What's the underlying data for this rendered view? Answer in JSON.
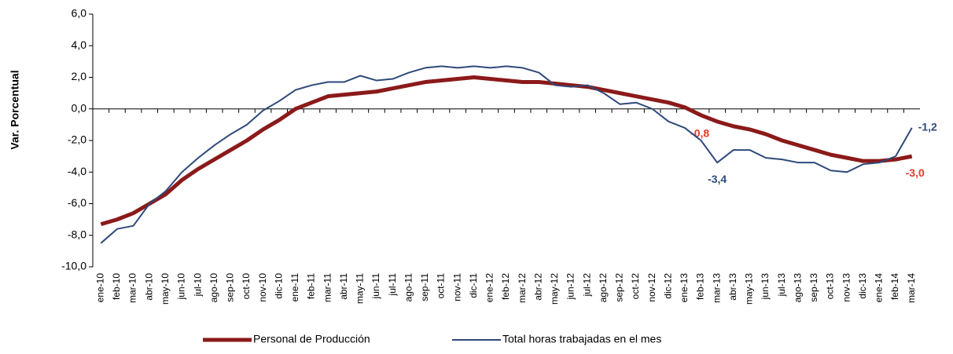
{
  "chart_data": {
    "type": "line",
    "y_label": "Var. Porcentual",
    "categories": [
      "ene-10",
      "feb-10",
      "mar-10",
      "abr-10",
      "may-10",
      "jun-10",
      "jul-10",
      "ago-10",
      "sep-10",
      "oct-10",
      "nov-10",
      "dic-10",
      "ene-11",
      "feb-11",
      "mar-11",
      "abr-11",
      "may-11",
      "jun-11",
      "jul-11",
      "ago-11",
      "sep-11",
      "oct-11",
      "nov-11",
      "dic-11",
      "ene-12",
      "feb-12",
      "mar-12",
      "abr-12",
      "may-12",
      "jun-12",
      "jul-12",
      "ago-12",
      "sep-12",
      "oct-12",
      "nov-12",
      "dic-12",
      "ene-13",
      "feb-13",
      "mar-13",
      "abr-13",
      "may-13",
      "jun-13",
      "jul-13",
      "ago-13",
      "sep-13",
      "oct-13",
      "nov-13",
      "dic-13",
      "ene-14",
      "feb-14",
      "mar-14"
    ],
    "series": [
      {
        "name": "Personal de Producción",
        "color": "#8b1a1a",
        "label_color": "#e03c28",
        "width": 5,
        "values": [
          -7.3,
          -7.0,
          -6.6,
          -6.0,
          -5.4,
          -4.5,
          -3.8,
          -3.2,
          -2.6,
          -2.0,
          -1.3,
          -0.7,
          0.0,
          0.4,
          0.8,
          0.9,
          1.0,
          1.1,
          1.3,
          1.5,
          1.7,
          1.8,
          1.9,
          2.0,
          1.9,
          1.8,
          1.7,
          1.7,
          1.6,
          1.5,
          1.4,
          1.2,
          1.0,
          0.8,
          0.6,
          0.4,
          0.1,
          -0.4,
          -0.8,
          -1.1,
          -1.3,
          -1.6,
          -2.0,
          -2.3,
          -2.6,
          -2.9,
          -3.1,
          -3.3,
          -3.3,
          -3.2,
          -3.0
        ],
        "value_labels": [
          null,
          null,
          null,
          null,
          null,
          null,
          null,
          null,
          null,
          null,
          null,
          null,
          null,
          null,
          null,
          null,
          null,
          null,
          null,
          null,
          null,
          null,
          null,
          null,
          null,
          null,
          null,
          null,
          null,
          null,
          null,
          null,
          null,
          null,
          null,
          null,
          null,
          null,
          "-0,8",
          null,
          null,
          null,
          null,
          null,
          null,
          null,
          null,
          null,
          null,
          null,
          "-3,0"
        ]
      },
      {
        "name": "Total horas trabajadas en el mes",
        "color": "#2e4a7a",
        "label_color": "#2e4a7a",
        "width": 2,
        "values": [
          -8.5,
          -7.6,
          -7.4,
          -6.0,
          -5.2,
          -4.0,
          -3.1,
          -2.3,
          -1.6,
          -1.0,
          -0.1,
          0.5,
          1.2,
          1.5,
          1.7,
          1.7,
          2.1,
          1.8,
          1.9,
          2.3,
          2.6,
          2.7,
          2.6,
          2.7,
          2.6,
          2.7,
          2.6,
          2.3,
          1.5,
          1.4,
          1.5,
          1.0,
          0.3,
          0.4,
          0.0,
          -0.8,
          -1.2,
          -2.0,
          -3.4,
          -2.6,
          -2.6,
          -3.1,
          -3.2,
          -3.4,
          -3.4,
          -3.9,
          -4.0,
          -3.5,
          -3.4,
          -3.0,
          -1.2
        ],
        "value_labels": [
          null,
          null,
          null,
          null,
          null,
          null,
          null,
          null,
          null,
          null,
          null,
          null,
          null,
          null,
          null,
          null,
          null,
          null,
          null,
          null,
          null,
          null,
          null,
          null,
          null,
          null,
          null,
          null,
          null,
          null,
          null,
          null,
          null,
          null,
          null,
          null,
          null,
          null,
          "-3,4",
          null,
          null,
          null,
          null,
          null,
          null,
          null,
          null,
          null,
          null,
          null,
          "-1,2"
        ]
      }
    ],
    "ylim": [
      -10,
      6
    ],
    "yticks": [
      {
        "value": -10,
        "label": "-10,0"
      },
      {
        "value": -8,
        "label": "-8,0"
      },
      {
        "value": -6,
        "label": "-6,0"
      },
      {
        "value": -4,
        "label": "-4,0"
      },
      {
        "value": -2,
        "label": "-2,0"
      },
      {
        "value": 0,
        "label": "0,0"
      },
      {
        "value": 2,
        "label": "2,0"
      },
      {
        "value": 4,
        "label": "4,0"
      },
      {
        "value": 6,
        "label": "6,0"
      }
    ],
    "grid": false
  }
}
